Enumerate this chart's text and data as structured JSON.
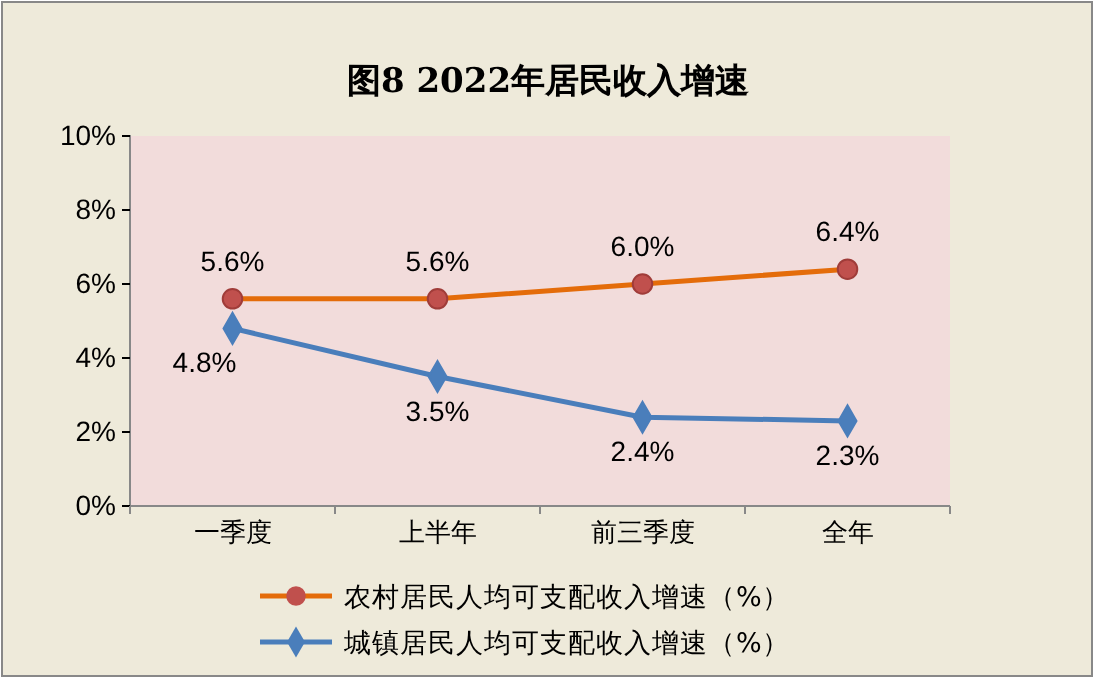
{
  "chart_data": {
    "type": "line",
    "title": "图8  2022年居民收入增速",
    "categories": [
      "一季度",
      "上半年",
      "前三季度",
      "全年"
    ],
    "ylim": [
      0,
      10
    ],
    "yticks": [
      {
        "value": 0,
        "label": "0%"
      },
      {
        "value": 2,
        "label": "2%"
      },
      {
        "value": 4,
        "label": "4%"
      },
      {
        "value": 6,
        "label": "6%"
      },
      {
        "value": 8,
        "label": "8%"
      },
      {
        "value": 10,
        "label": "10%"
      }
    ],
    "series": [
      {
        "name": "农村居民人均可支配收入增速（%）",
        "color": "#e46c0a",
        "marker": "circle",
        "values": [
          5.6,
          5.6,
          6.0,
          6.4
        ],
        "value_labels": [
          "5.6%",
          "5.6%",
          "6.0%",
          "6.4%"
        ]
      },
      {
        "name": "城镇居民人均可支配收入增速（%）",
        "color": "#4a7ebb",
        "marker": "diamond",
        "values": [
          4.8,
          3.5,
          2.4,
          2.3
        ],
        "value_labels": [
          "4.8%",
          "3.5%",
          "2.4%",
          "2.3%"
        ]
      }
    ],
    "legend": "bottom",
    "grid": false
  }
}
